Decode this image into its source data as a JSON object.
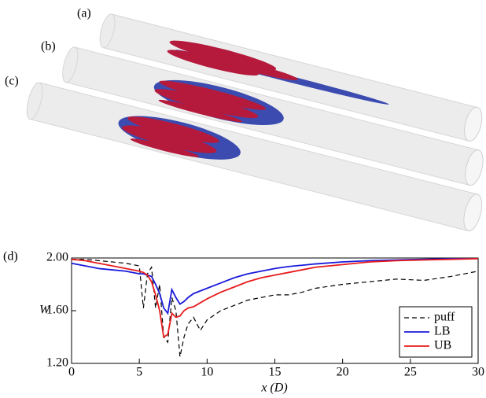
{
  "panel_labels": [
    "(a)",
    "(b)",
    "(c)"
  ],
  "chart_data": {
    "type": "line",
    "panel_label": "(d)",
    "xlabel": "x (D)",
    "ylabel": "W",
    "x": [
      0,
      1,
      2,
      3,
      4,
      5,
      5.3,
      5.6,
      5.9,
      6.2,
      6.5,
      6.8,
      7.1,
      7.4,
      7.7,
      8,
      8.3,
      8.6,
      9,
      9.5,
      10,
      11,
      12,
      13,
      14,
      15,
      16,
      17,
      18,
      20,
      22,
      24,
      26,
      28,
      30
    ],
    "series": [
      {
        "name": "puff",
        "color": "#000000",
        "dashed": true,
        "values": [
          1.99,
          1.99,
          1.98,
          1.97,
          1.96,
          1.94,
          1.62,
          1.88,
          1.93,
          1.62,
          1.8,
          1.4,
          1.36,
          1.7,
          1.6,
          1.25,
          1.4,
          1.5,
          1.55,
          1.45,
          1.53,
          1.6,
          1.64,
          1.68,
          1.7,
          1.72,
          1.72,
          1.74,
          1.77,
          1.8,
          1.82,
          1.84,
          1.83,
          1.86,
          1.9
        ]
      },
      {
        "name": "LB",
        "color": "#1a1adb",
        "dashed": false,
        "values": [
          1.96,
          1.94,
          1.92,
          1.91,
          1.9,
          1.88,
          1.88,
          1.87,
          1.86,
          1.8,
          1.73,
          1.62,
          1.58,
          1.76,
          1.7,
          1.65,
          1.67,
          1.7,
          1.73,
          1.75,
          1.77,
          1.81,
          1.85,
          1.88,
          1.9,
          1.92,
          1.935,
          1.945,
          1.955,
          1.97,
          1.98,
          1.985,
          1.99,
          1.995,
          1.995
        ]
      },
      {
        "name": "UB",
        "color": "#e81b1b",
        "dashed": false,
        "values": [
          1.99,
          1.98,
          1.96,
          1.94,
          1.92,
          1.9,
          1.89,
          1.87,
          1.82,
          1.72,
          1.6,
          1.4,
          1.42,
          1.58,
          1.55,
          1.56,
          1.6,
          1.62,
          1.63,
          1.66,
          1.69,
          1.74,
          1.78,
          1.82,
          1.85,
          1.87,
          1.89,
          1.91,
          1.93,
          1.95,
          1.97,
          1.98,
          1.985,
          1.99,
          1.995
        ]
      }
    ],
    "xlim": [
      0,
      30
    ],
    "ylim": [
      1.2,
      2.0
    ],
    "xticks": [
      0,
      5,
      10,
      15,
      20,
      25,
      30
    ],
    "yticks": [
      {
        "value": 1.2,
        "label": "1.20"
      },
      {
        "value": 1.6,
        "label": "1.60"
      },
      {
        "value": 2.0,
        "label": "2.00"
      }
    ],
    "legend": "lower right"
  }
}
